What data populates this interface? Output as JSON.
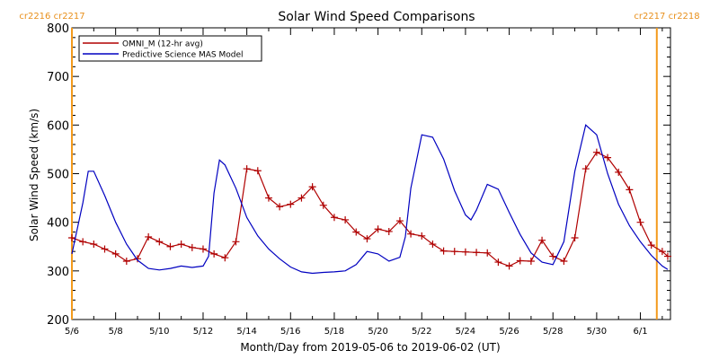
{
  "chart_data": {
    "type": "line",
    "title": "Solar Wind Speed Comparisons",
    "xlabel": "Month/Day from 2019-05-06 to 2019-06-02 (UT)",
    "ylabel": "Solar Wind Speed (km/s)",
    "xlim": [
      "2019-05-06",
      "2019-06-02"
    ],
    "ylim": [
      200,
      800
    ],
    "x_ticks": [
      {
        "date": "2019-05-06",
        "label": "5/6"
      },
      {
        "date": "2019-05-08",
        "label": "5/8"
      },
      {
        "date": "2019-05-10",
        "label": "5/10"
      },
      {
        "date": "2019-05-12",
        "label": "5/12"
      },
      {
        "date": "2019-05-14",
        "label": "5/14"
      },
      {
        "date": "2019-05-16",
        "label": "5/16"
      },
      {
        "date": "2019-05-18",
        "label": "5/18"
      },
      {
        "date": "2019-05-20",
        "label": "5/20"
      },
      {
        "date": "2019-05-22",
        "label": "5/22"
      },
      {
        "date": "2019-05-24",
        "label": "5/24"
      },
      {
        "date": "2019-05-26",
        "label": "5/26"
      },
      {
        "date": "2019-05-28",
        "label": "5/28"
      },
      {
        "date": "2019-05-30",
        "label": "5/30"
      },
      {
        "date": "2019-06-01",
        "label": "6/1"
      }
    ],
    "y_ticks": [
      200,
      300,
      400,
      500,
      600,
      700,
      800
    ],
    "grid": false,
    "legend_position": "top-left",
    "carrington_markers": [
      {
        "date": "2019-05-06",
        "left_label": "cr2216",
        "right_label": "cr2217",
        "side": "left"
      },
      {
        "date": "2019-06-01T18:00",
        "left_label": "cr2217",
        "right_label": "cr2218",
        "side": "right"
      }
    ],
    "series": [
      {
        "name": "OMNI_M (12-hr avg)",
        "color": "#b00000",
        "marker": "plus",
        "points": [
          [
            "2019-05-06T00:00",
            368
          ],
          [
            "2019-05-06T12:00",
            360
          ],
          [
            "2019-05-07T00:00",
            355
          ],
          [
            "2019-05-07T12:00",
            345
          ],
          [
            "2019-05-08T00:00",
            335
          ],
          [
            "2019-05-08T12:00",
            320
          ],
          [
            "2019-05-09T00:00",
            325
          ],
          [
            "2019-05-09T12:00",
            370
          ],
          [
            "2019-05-10T00:00",
            360
          ],
          [
            "2019-05-10T12:00",
            350
          ],
          [
            "2019-05-11T00:00",
            355
          ],
          [
            "2019-05-11T12:00",
            348
          ],
          [
            "2019-05-12T00:00",
            345
          ],
          [
            "2019-05-12T12:00",
            335
          ],
          [
            "2019-05-13T00:00",
            327
          ],
          [
            "2019-05-13T12:00",
            360
          ],
          [
            "2019-05-14T00:00",
            510
          ],
          [
            "2019-05-14T12:00",
            506
          ],
          [
            "2019-05-15T00:00",
            450
          ],
          [
            "2019-05-15T12:00",
            432
          ],
          [
            "2019-05-16T00:00",
            437
          ],
          [
            "2019-05-16T12:00",
            450
          ],
          [
            "2019-05-17T00:00",
            473
          ],
          [
            "2019-05-17T12:00",
            435
          ],
          [
            "2019-05-18T00:00",
            410
          ],
          [
            "2019-05-18T12:00",
            405
          ],
          [
            "2019-05-19T00:00",
            380
          ],
          [
            "2019-05-19T12:00",
            366
          ],
          [
            "2019-05-20T00:00",
            386
          ],
          [
            "2019-05-20T12:00",
            381
          ],
          [
            "2019-05-21T00:00",
            403
          ],
          [
            "2019-05-21T12:00",
            376
          ],
          [
            "2019-05-22T00:00",
            372
          ],
          [
            "2019-05-22T12:00",
            355
          ],
          [
            "2019-05-23T00:00",
            341
          ],
          [
            "2019-05-23T12:00",
            340
          ],
          [
            "2019-05-24T00:00",
            339
          ],
          [
            "2019-05-24T12:00",
            338
          ],
          [
            "2019-05-25T00:00",
            337
          ],
          [
            "2019-05-25T12:00",
            318
          ],
          [
            "2019-05-26T00:00",
            310
          ],
          [
            "2019-05-26T12:00",
            321
          ],
          [
            "2019-05-27T00:00",
            320
          ],
          [
            "2019-05-27T12:00",
            363
          ],
          [
            "2019-05-28T00:00",
            330
          ],
          [
            "2019-05-28T12:00",
            320
          ],
          [
            "2019-05-29T00:00",
            368
          ],
          [
            "2019-05-29T12:00",
            510
          ],
          [
            "2019-05-30T00:00",
            544
          ],
          [
            "2019-05-30T12:00",
            533
          ],
          [
            "2019-05-31T00:00",
            503
          ],
          [
            "2019-05-31T12:00",
            467
          ],
          [
            "2019-06-01T00:00",
            400
          ],
          [
            "2019-06-01T12:00",
            353
          ],
          [
            "2019-06-02T00:00",
            340
          ],
          [
            "2019-06-02T06:00",
            330
          ]
        ]
      },
      {
        "name": "Predictive Science MAS Model",
        "color": "#0000c0",
        "marker": "none",
        "points": [
          [
            "2019-05-06T00:00",
            335
          ],
          [
            "2019-05-06T12:00",
            440
          ],
          [
            "2019-05-06T18:00",
            505
          ],
          [
            "2019-05-07T00:00",
            505
          ],
          [
            "2019-05-07T12:00",
            455
          ],
          [
            "2019-05-08T00:00",
            400
          ],
          [
            "2019-05-08T12:00",
            355
          ],
          [
            "2019-05-09T00:00",
            322
          ],
          [
            "2019-05-09T12:00",
            305
          ],
          [
            "2019-05-10T00:00",
            302
          ],
          [
            "2019-05-10T12:00",
            305
          ],
          [
            "2019-05-11T00:00",
            310
          ],
          [
            "2019-05-11T12:00",
            307
          ],
          [
            "2019-05-12T00:00",
            310
          ],
          [
            "2019-05-12T06:00",
            330
          ],
          [
            "2019-05-12T12:00",
            460
          ],
          [
            "2019-05-12T18:00",
            528
          ],
          [
            "2019-05-13T00:00",
            518
          ],
          [
            "2019-05-13T12:00",
            470
          ],
          [
            "2019-05-14T00:00",
            410
          ],
          [
            "2019-05-14T12:00",
            372
          ],
          [
            "2019-05-15T00:00",
            345
          ],
          [
            "2019-05-15T12:00",
            325
          ],
          [
            "2019-05-16T00:00",
            308
          ],
          [
            "2019-05-16T12:00",
            298
          ],
          [
            "2019-05-17T00:00",
            295
          ],
          [
            "2019-05-17T12:00",
            297
          ],
          [
            "2019-05-18T00:00",
            298
          ],
          [
            "2019-05-18T12:00",
            300
          ],
          [
            "2019-05-19T00:00",
            313
          ],
          [
            "2019-05-19T12:00",
            340
          ],
          [
            "2019-05-20T00:00",
            335
          ],
          [
            "2019-05-20T12:00",
            320
          ],
          [
            "2019-05-21T00:00",
            328
          ],
          [
            "2019-05-21T06:00",
            370
          ],
          [
            "2019-05-21T12:00",
            470
          ],
          [
            "2019-05-22T00:00",
            580
          ],
          [
            "2019-05-22T12:00",
            575
          ],
          [
            "2019-05-23T00:00",
            530
          ],
          [
            "2019-05-23T12:00",
            465
          ],
          [
            "2019-05-24T00:00",
            415
          ],
          [
            "2019-05-24T06:00",
            405
          ],
          [
            "2019-05-24T12:00",
            425
          ],
          [
            "2019-05-25T00:00",
            478
          ],
          [
            "2019-05-25T12:00",
            468
          ],
          [
            "2019-05-26T00:00",
            420
          ],
          [
            "2019-05-26T12:00",
            375
          ],
          [
            "2019-05-27T00:00",
            337
          ],
          [
            "2019-05-27T12:00",
            318
          ],
          [
            "2019-05-28T00:00",
            313
          ],
          [
            "2019-05-28T12:00",
            360
          ],
          [
            "2019-05-29T00:00",
            505
          ],
          [
            "2019-05-29T12:00",
            600
          ],
          [
            "2019-05-30T00:00",
            580
          ],
          [
            "2019-05-30T12:00",
            500
          ],
          [
            "2019-05-31T00:00",
            437
          ],
          [
            "2019-05-31T12:00",
            393
          ],
          [
            "2019-06-01T00:00",
            360
          ],
          [
            "2019-06-01T12:00",
            332
          ],
          [
            "2019-06-02T00:00",
            310
          ],
          [
            "2019-06-02T06:00",
            303
          ]
        ]
      }
    ]
  }
}
